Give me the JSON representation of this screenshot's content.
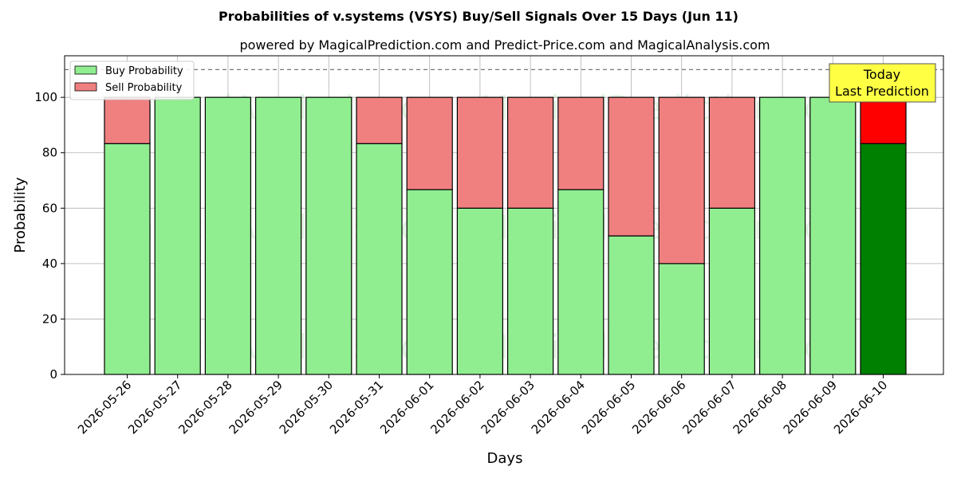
{
  "chart_data": {
    "type": "bar",
    "stacked": true,
    "title": "Probabilities of v.systems (VSYS) Buy/Sell Signals Over 15 Days (Jun 11)",
    "subtitle": "powered by MagicalPrediction.com and Predict-Price.com and MagicalAnalysis.com",
    "xlabel": "Days",
    "ylabel": "Probability",
    "ylim": [
      0,
      115
    ],
    "yticks": [
      0,
      20,
      40,
      60,
      80,
      100
    ],
    "grid": true,
    "reference_line": 110,
    "legend_position": "top-left",
    "categories": [
      "2026-05-26",
      "2026-05-27",
      "2026-05-28",
      "2026-05-29",
      "2026-05-30",
      "2026-05-31",
      "2026-06-01",
      "2026-06-02",
      "2026-06-03",
      "2026-06-04",
      "2026-06-05",
      "2026-06-06",
      "2026-06-07",
      "2026-06-08",
      "2026-06-09",
      "2026-06-10"
    ],
    "series": [
      {
        "name": "Buy Probability",
        "color": "#90ee90",
        "highlight_color": "#008000",
        "values": [
          83.3,
          100,
          100,
          100,
          100,
          83.3,
          66.7,
          60,
          60,
          66.7,
          50,
          40,
          60,
          100,
          100,
          83.3
        ]
      },
      {
        "name": "Sell Probability",
        "color": "#f08080",
        "highlight_color": "#ff0000",
        "values": [
          16.7,
          0,
          0,
          0,
          0,
          16.7,
          33.3,
          40,
          40,
          33.3,
          50,
          60,
          40,
          0,
          0,
          16.7
        ]
      }
    ],
    "highlight_index": 15,
    "annotation": {
      "lines": [
        "Today",
        "Last Prediction"
      ],
      "color": "#ffff44"
    },
    "watermarks": [
      "MagicalAnalysis.com",
      "MagicalPrediction.com"
    ]
  }
}
